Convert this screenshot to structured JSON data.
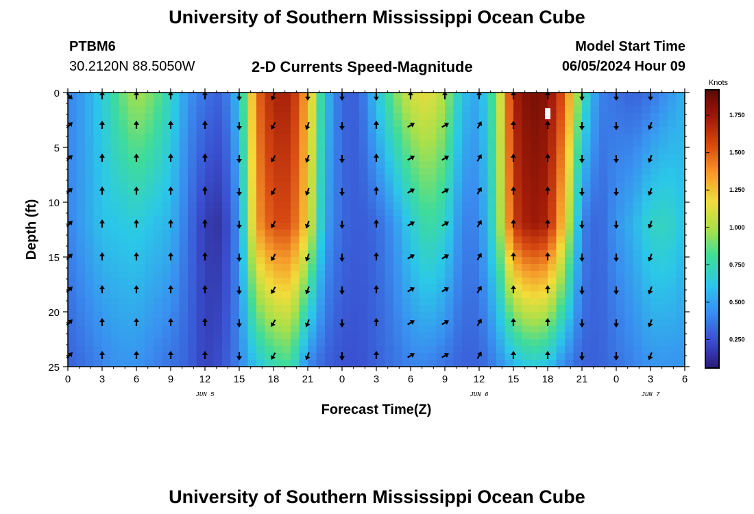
{
  "page_title": "University of Southern Mississippi Ocean Cube",
  "footer_title": "University of Southern Mississippi Ocean Cube",
  "station": {
    "id": "PTBM6",
    "coords": "30.2120N  88.5050W"
  },
  "plot_title": "2-D Currents Speed-Magnitude",
  "model_start": {
    "label": "Model Start Time",
    "value": "06/05/2024 Hour 09"
  },
  "chart_data": {
    "type": "heatmap",
    "title": "2-D Currents Speed-Magnitude",
    "xlabel": "Forecast Time(Z)",
    "ylabel": "Depth (ft)",
    "x_tick_labels": [
      "0",
      "3",
      "6",
      "9",
      "12",
      "15",
      "18",
      "21",
      "0",
      "3",
      "6",
      "9",
      "12",
      "15",
      "18",
      "21",
      "0",
      "3",
      "6"
    ],
    "x_range_hours": [
      0,
      54
    ],
    "date_labels": [
      {
        "text": "JUN 5",
        "hour": 12
      },
      {
        "text": "JUN 6",
        "hour": 36
      },
      {
        "text": "JUN 7",
        "hour": 51
      }
    ],
    "y_tick_labels": [
      "0",
      "5",
      "10",
      "15",
      "20",
      "25"
    ],
    "y_range_ft": [
      0,
      25
    ],
    "colorbar": {
      "unit": "Knots",
      "range": [
        0.06,
        1.92
      ],
      "ticks": [
        "0.250",
        "0.500",
        "0.750",
        "1.000",
        "1.250",
        "1.500",
        "1.750"
      ],
      "tick_values": [
        0.25,
        0.5,
        0.75,
        1.0,
        1.25,
        1.5,
        1.75
      ],
      "colors": [
        "#2b1a75",
        "#3a4fd0",
        "#3a8ef0",
        "#2bc8e8",
        "#3fdc9a",
        "#a9e04a",
        "#f2dc3a",
        "#f59a2a",
        "#d84a12",
        "#a01a08",
        "#5a0a04"
      ]
    },
    "speed_profiles": {
      "description": "Speed (knots) vs forecast hour at surface, mid (12ft) and bottom (25ft)",
      "hours": [
        0,
        1.5,
        3,
        4.5,
        6,
        7.5,
        9,
        10.5,
        12,
        13.5,
        15,
        16.5,
        18,
        19.5,
        21,
        22.5,
        24,
        25.5,
        27,
        28.5,
        30,
        31.5,
        33,
        34.5,
        36,
        37.5,
        39,
        40.5,
        42,
        43.5,
        45,
        46.5,
        48,
        49.5,
        51,
        52.5,
        54
      ],
      "surface": [
        0.4,
        0.5,
        0.65,
        0.85,
        1.0,
        0.9,
        0.7,
        0.45,
        0.35,
        0.3,
        0.6,
        1.45,
        1.7,
        1.7,
        1.3,
        0.6,
        0.3,
        0.3,
        0.6,
        0.9,
        1.1,
        1.15,
        1.0,
        0.6,
        0.5,
        0.9,
        1.7,
        1.85,
        1.8,
        1.5,
        0.8,
        0.4,
        0.35,
        0.3,
        0.35,
        0.45,
        0.55
      ],
      "mid": [
        0.4,
        0.5,
        0.6,
        0.62,
        0.65,
        0.6,
        0.55,
        0.35,
        0.18,
        0.15,
        0.45,
        1.35,
        1.55,
        1.55,
        1.2,
        0.5,
        0.32,
        0.28,
        0.32,
        0.45,
        0.65,
        0.8,
        0.7,
        0.4,
        0.4,
        0.8,
        1.6,
        1.75,
        1.7,
        1.2,
        0.4,
        0.3,
        0.45,
        0.55,
        0.7,
        0.72,
        0.6
      ],
      "bottom": [
        0.3,
        0.35,
        0.4,
        0.45,
        0.45,
        0.4,
        0.35,
        0.3,
        0.2,
        0.25,
        0.4,
        0.6,
        0.75,
        0.8,
        0.4,
        0.3,
        0.25,
        0.25,
        0.3,
        0.35,
        0.4,
        0.4,
        0.35,
        0.3,
        0.3,
        0.4,
        0.55,
        0.65,
        0.6,
        0.4,
        0.3,
        0.3,
        0.35,
        0.4,
        0.45,
        0.45,
        0.45
      ]
    },
    "arrows": {
      "hours": [
        0,
        3,
        6,
        9,
        12,
        15,
        18,
        21,
        24,
        27,
        30,
        33,
        36,
        39,
        42,
        45,
        48,
        51
      ],
      "depths_ft": [
        0,
        3,
        6,
        9,
        12,
        15,
        18,
        21,
        24
      ],
      "direction_deg_from_north": [
        [
          135,
          0,
          0,
          0,
          0,
          180,
          200,
          180,
          180,
          180,
          0,
          0,
          0,
          0,
          0,
          180,
          180,
          180
        ],
        [
          45,
          0,
          0,
          0,
          0,
          180,
          210,
          200,
          180,
          0,
          60,
          60,
          30,
          0,
          0,
          180,
          180,
          200
        ],
        [
          45,
          0,
          0,
          0,
          0,
          180,
          210,
          200,
          180,
          0,
          60,
          60,
          30,
          0,
          0,
          180,
          180,
          200
        ],
        [
          45,
          0,
          0,
          0,
          0,
          180,
          210,
          200,
          180,
          0,
          60,
          60,
          30,
          0,
          0,
          180,
          180,
          200
        ],
        [
          45,
          0,
          0,
          0,
          0,
          180,
          210,
          200,
          180,
          0,
          60,
          60,
          30,
          0,
          0,
          180,
          180,
          200
        ],
        [
          45,
          0,
          0,
          0,
          0,
          180,
          210,
          200,
          180,
          0,
          60,
          60,
          30,
          0,
          0,
          180,
          180,
          200
        ],
        [
          45,
          0,
          0,
          0,
          0,
          180,
          210,
          200,
          180,
          0,
          60,
          60,
          30,
          0,
          0,
          180,
          180,
          200
        ],
        [
          45,
          0,
          0,
          0,
          0,
          180,
          210,
          200,
          180,
          0,
          60,
          60,
          30,
          0,
          0,
          180,
          180,
          200
        ],
        [
          45,
          0,
          0,
          0,
          0,
          180,
          210,
          200,
          180,
          0,
          60,
          60,
          30,
          0,
          0,
          180,
          180,
          200
        ]
      ]
    }
  }
}
